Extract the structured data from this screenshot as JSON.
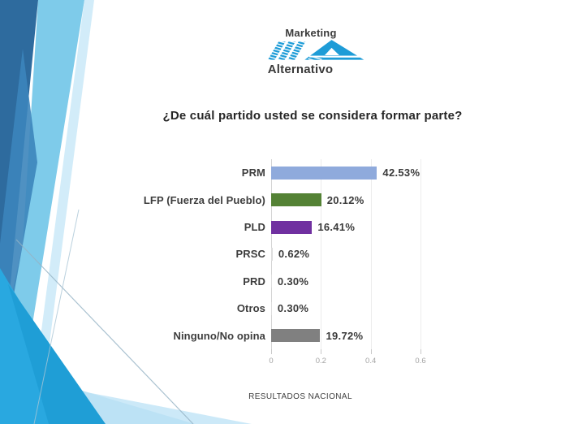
{
  "slide": {
    "logo": {
      "top_text": "Marketing",
      "bottom_text": "Alternativo",
      "icon": "ma-monogram-icon",
      "brand_blue": "#1e9cd7",
      "text_color": "#3a3a3a"
    },
    "footer": "RESULTADOS NACIONAL",
    "accent_colors": {
      "dark_blue": "#2e6b9e",
      "medium_blue": "#3c85bb",
      "sky_blue": "#7ecbea",
      "bright_blue": "#29a8e0",
      "pale_blue": "#c7e8f7"
    }
  },
  "chart_data": {
    "type": "bar",
    "orientation": "horizontal",
    "title": "¿De cuál partido usted se considera formar parte?",
    "categories": [
      "PRM",
      "LFP (Fuerza del Pueblo)",
      "PLD",
      "PRSC",
      "PRD",
      "Otros",
      "Ninguno/No opina"
    ],
    "values": [
      42.53,
      20.12,
      16.41,
      0.62,
      0.3,
      0.3,
      19.72
    ],
    "value_labels": [
      "42.53%",
      "20.12%",
      "16.41%",
      "0.62%",
      "0.30%",
      "0.30%",
      "19.72%"
    ],
    "bar_colors": [
      "#8faadc",
      "#548235",
      "#7030a0",
      "#dddddd",
      "#dddddd",
      "#dddddd",
      "#808080"
    ],
    "values_unit": "percent",
    "x_ticks": [
      "0",
      "0.2",
      "0.4",
      "0.6"
    ],
    "xlim": [
      0,
      0.6
    ],
    "grid": true,
    "legend": false,
    "xlabel": "",
    "ylabel": ""
  }
}
